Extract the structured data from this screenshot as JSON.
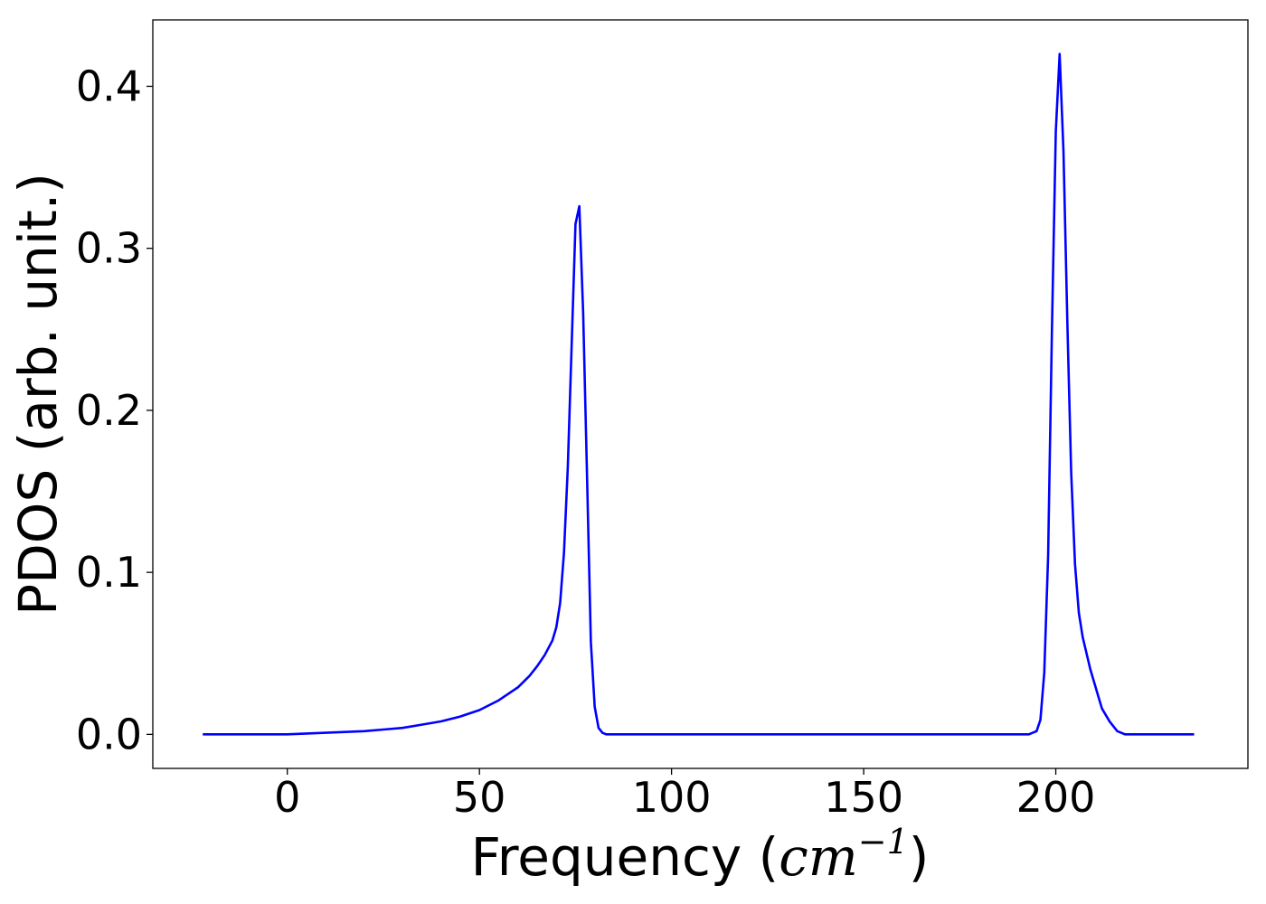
{
  "chart_data": {
    "type": "line",
    "title": "",
    "xlabel": {
      "prefix": "Frequency (",
      "unit_base": "cm",
      "unit_exp": "−1",
      "suffix": ")"
    },
    "ylabel": "PDOS (arb. unit.)",
    "xlim": [
      -35,
      250
    ],
    "ylim": [
      -0.021,
      0.441
    ],
    "xticks": [
      0,
      50,
      100,
      150,
      200
    ],
    "xtick_labels": [
      "0",
      "50",
      "100",
      "150",
      "200"
    ],
    "yticks": [
      0.0,
      0.1,
      0.2,
      0.3,
      0.4
    ],
    "ytick_labels": [
      "0.0",
      "0.1",
      "0.2",
      "0.3",
      "0.4"
    ],
    "grid": false,
    "series": [
      {
        "color": "#0000ff",
        "x": [
          -22,
          0,
          5,
          10,
          15,
          20,
          25,
          30,
          35,
          40,
          45,
          50,
          55,
          60,
          63,
          65,
          67,
          69,
          70,
          71,
          72,
          73,
          74,
          75,
          76,
          77,
          78,
          79,
          80,
          81,
          82,
          83,
          84,
          85,
          100,
          150,
          193,
          195,
          196,
          197,
          198,
          199,
          200,
          201,
          202,
          203,
          204,
          205,
          206,
          207,
          208,
          209,
          210,
          211,
          212,
          214,
          216,
          218,
          219,
          220,
          222,
          236
        ],
        "y": [
          0.0,
          0.0,
          0.0005,
          0.001,
          0.0015,
          0.002,
          0.003,
          0.004,
          0.006,
          0.008,
          0.011,
          0.015,
          0.021,
          0.029,
          0.036,
          0.042,
          0.049,
          0.058,
          0.066,
          0.081,
          0.112,
          0.165,
          0.24,
          0.315,
          0.326,
          0.26,
          0.16,
          0.057,
          0.017,
          0.004,
          0.001,
          0.0,
          0.0,
          0.0,
          0.0,
          0.0,
          0.0,
          0.002,
          0.009,
          0.038,
          0.11,
          0.25,
          0.372,
          0.42,
          0.36,
          0.255,
          0.162,
          0.105,
          0.075,
          0.06,
          0.05,
          0.04,
          0.032,
          0.024,
          0.016,
          0.008,
          0.002,
          0.0,
          0.0,
          0.0,
          0.0,
          0.0
        ]
      }
    ]
  }
}
